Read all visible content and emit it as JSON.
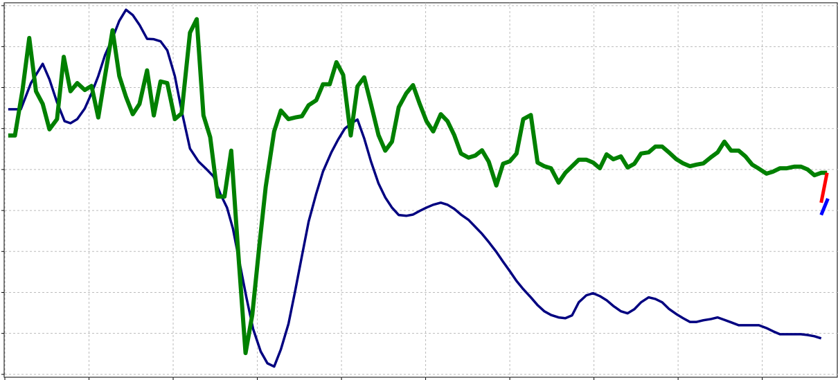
{
  "chart_data": {
    "type": "line",
    "xlim": [
      0,
      99
    ],
    "ylim": [
      -0.7,
      90.7
    ],
    "xticks": [
      0,
      10,
      20,
      30,
      40,
      50,
      60,
      70,
      80,
      90
    ],
    "yticks": [
      0,
      10,
      20,
      30,
      40,
      50,
      60,
      70,
      80,
      90
    ],
    "grid": true,
    "series": [
      {
        "color": "#000080",
        "width": 3.5,
        "x": [
          0.4,
          1.9,
          3.1,
          4.5,
          5.3,
          6.2,
          7.1,
          7.8,
          8.6,
          9.5,
          10.3,
          11.1,
          11.9,
          12.8,
          13.6,
          14.4,
          15.2,
          16.0,
          16.9,
          17.7,
          18.5,
          19.3,
          20.2,
          21.0,
          22.0,
          23.0,
          24.0,
          24.8,
          25.6,
          26.4,
          27.1,
          27.9,
          28.7,
          29.5,
          30.4,
          31.2,
          32.0,
          32.8,
          33.7,
          34.5,
          35.3,
          36.1,
          37.0,
          37.8,
          38.8,
          39.6,
          40.4,
          41.2,
          41.9,
          42.7,
          43.5,
          44.4,
          45.2,
          46.0,
          46.8,
          47.7,
          48.5,
          49.3,
          50.1,
          50.9,
          51.8,
          52.6,
          53.4,
          54.2,
          55.1,
          55.9,
          56.7,
          57.5,
          58.4,
          59.2,
          60.0,
          60.8,
          61.6,
          62.5,
          63.3,
          64.1,
          64.9,
          65.8,
          66.6,
          67.4,
          68.2,
          69.1,
          69.9,
          70.7,
          71.5,
          72.3,
          73.2,
          74.0,
          74.8,
          75.6,
          76.5,
          77.3,
          78.1,
          78.9,
          79.8,
          80.6,
          81.4,
          82.2,
          83.0,
          83.9,
          84.7,
          85.5,
          86.3,
          87.2,
          88.0,
          89.6,
          90.5,
          91.3,
          92.1,
          93.8,
          94.6,
          95.4,
          96.2,
          97.0
        ],
        "values": [
          64.7,
          64.7,
          71.1,
          75.8,
          72.0,
          66.4,
          61.8,
          61.3,
          62.3,
          64.9,
          68.6,
          72.8,
          77.9,
          82.1,
          86.3,
          89.0,
          87.7,
          85.3,
          81.9,
          81.8,
          81.3,
          79.1,
          72.8,
          64.4,
          55.1,
          52.0,
          50.0,
          48.3,
          44.1,
          40.7,
          35.6,
          27.2,
          18.8,
          11.1,
          5.6,
          2.7,
          1.9,
          6.1,
          12.3,
          20.4,
          28.9,
          37.3,
          44.1,
          49.5,
          54.2,
          57.3,
          60.0,
          61.3,
          62.2,
          57.6,
          52.0,
          46.6,
          43.2,
          40.7,
          38.9,
          38.7,
          39.0,
          39.9,
          40.7,
          41.4,
          41.9,
          41.4,
          40.4,
          39.0,
          37.7,
          36.0,
          34.3,
          32.3,
          29.9,
          27.5,
          25.2,
          22.8,
          20.8,
          18.8,
          16.9,
          15.4,
          14.5,
          13.9,
          13.7,
          14.4,
          17.6,
          19.3,
          19.8,
          19.1,
          18.1,
          16.7,
          15.4,
          14.9,
          15.9,
          17.6,
          18.8,
          18.4,
          17.6,
          16.0,
          14.7,
          13.7,
          12.8,
          12.8,
          13.2,
          13.5,
          13.9,
          13.3,
          12.7,
          12.0,
          12.0,
          12.0,
          11.3,
          10.5,
          9.8,
          9.8,
          9.8,
          9.6,
          9.3,
          8.8
        ]
      },
      {
        "color": "#008000",
        "width": 6,
        "x": [
          0.4,
          1.2,
          2.1,
          2.9,
          3.7,
          4.5,
          5.3,
          6.2,
          7.0,
          7.8,
          8.6,
          9.5,
          10.3,
          11.1,
          11.9,
          12.8,
          13.6,
          14.4,
          15.2,
          16.0,
          16.9,
          17.7,
          18.5,
          19.3,
          20.2,
          21.0,
          22.0,
          22.8,
          23.6,
          24.4,
          25.3,
          26.1,
          26.9,
          27.7,
          28.6,
          29.4,
          30.2,
          31.0,
          32.0,
          32.8,
          33.7,
          34.5,
          35.3,
          36.1,
          37.0,
          37.8,
          38.6,
          39.4,
          40.2,
          41.1,
          41.9,
          42.7,
          43.5,
          44.4,
          45.2,
          46.0,
          46.8,
          47.7,
          48.5,
          49.3,
          50.1,
          50.9,
          51.8,
          52.6,
          53.4,
          54.2,
          55.1,
          55.9,
          56.7,
          57.5,
          58.4,
          59.2,
          60.0,
          60.8,
          61.6,
          62.5,
          63.3,
          64.1,
          64.9,
          65.8,
          66.6,
          67.4,
          68.2,
          69.1,
          69.9,
          70.7,
          71.5,
          72.3,
          73.2,
          74.0,
          74.8,
          75.6,
          76.5,
          77.3,
          78.1,
          78.9,
          79.8,
          80.6,
          81.4,
          82.2,
          83.0,
          83.9,
          84.7,
          85.5,
          86.3,
          87.2,
          88.0,
          88.8,
          89.6,
          90.5,
          91.3,
          92.1,
          92.9,
          93.8,
          94.6,
          95.4,
          96.2,
          97.0,
          97.7
        ],
        "values": [
          58.3,
          58.3,
          69.4,
          82.1,
          69.1,
          66.0,
          59.8,
          62.3,
          77.5,
          69.1,
          71.1,
          69.4,
          70.4,
          62.7,
          72.8,
          84.0,
          72.8,
          67.7,
          63.5,
          66.0,
          74.2,
          63.2,
          71.5,
          71.1,
          62.3,
          63.7,
          83.4,
          86.7,
          63.2,
          57.9,
          43.4,
          43.4,
          54.6,
          30.6,
          5.2,
          14.5,
          30.6,
          45.8,
          59.3,
          64.4,
          62.3,
          62.7,
          63.0,
          65.7,
          66.9,
          70.8,
          70.8,
          76.2,
          73.1,
          58.3,
          70.3,
          72.5,
          66.0,
          58.4,
          54.6,
          56.8,
          65.2,
          68.6,
          70.6,
          66.0,
          61.8,
          59.3,
          63.5,
          61.8,
          58.4,
          53.9,
          52.9,
          53.4,
          54.7,
          51.9,
          46.1,
          51.4,
          52.0,
          53.9,
          62.3,
          63.3,
          51.7,
          50.8,
          50.3,
          46.8,
          49.2,
          50.8,
          52.4,
          52.4,
          51.7,
          50.3,
          53.7,
          52.5,
          53.2,
          50.5,
          51.4,
          53.9,
          54.2,
          55.6,
          55.6,
          54.2,
          52.5,
          51.5,
          50.8,
          51.2,
          51.5,
          53.0,
          54.2,
          56.8,
          54.6,
          54.6,
          53.2,
          51.2,
          50.2,
          49.0,
          49.5,
          50.3,
          50.3,
          50.7,
          50.7,
          50.0,
          48.6,
          49.2,
          49.2
        ]
      },
      {
        "color": "#ff0000",
        "width": 5,
        "x": [
          97.0,
          97.7
        ],
        "values": [
          41.9,
          49.2
        ]
      },
      {
        "color": "#0000ff",
        "width": 5,
        "x": [
          97.0,
          97.8
        ],
        "values": [
          38.9,
          42.9
        ]
      }
    ]
  }
}
